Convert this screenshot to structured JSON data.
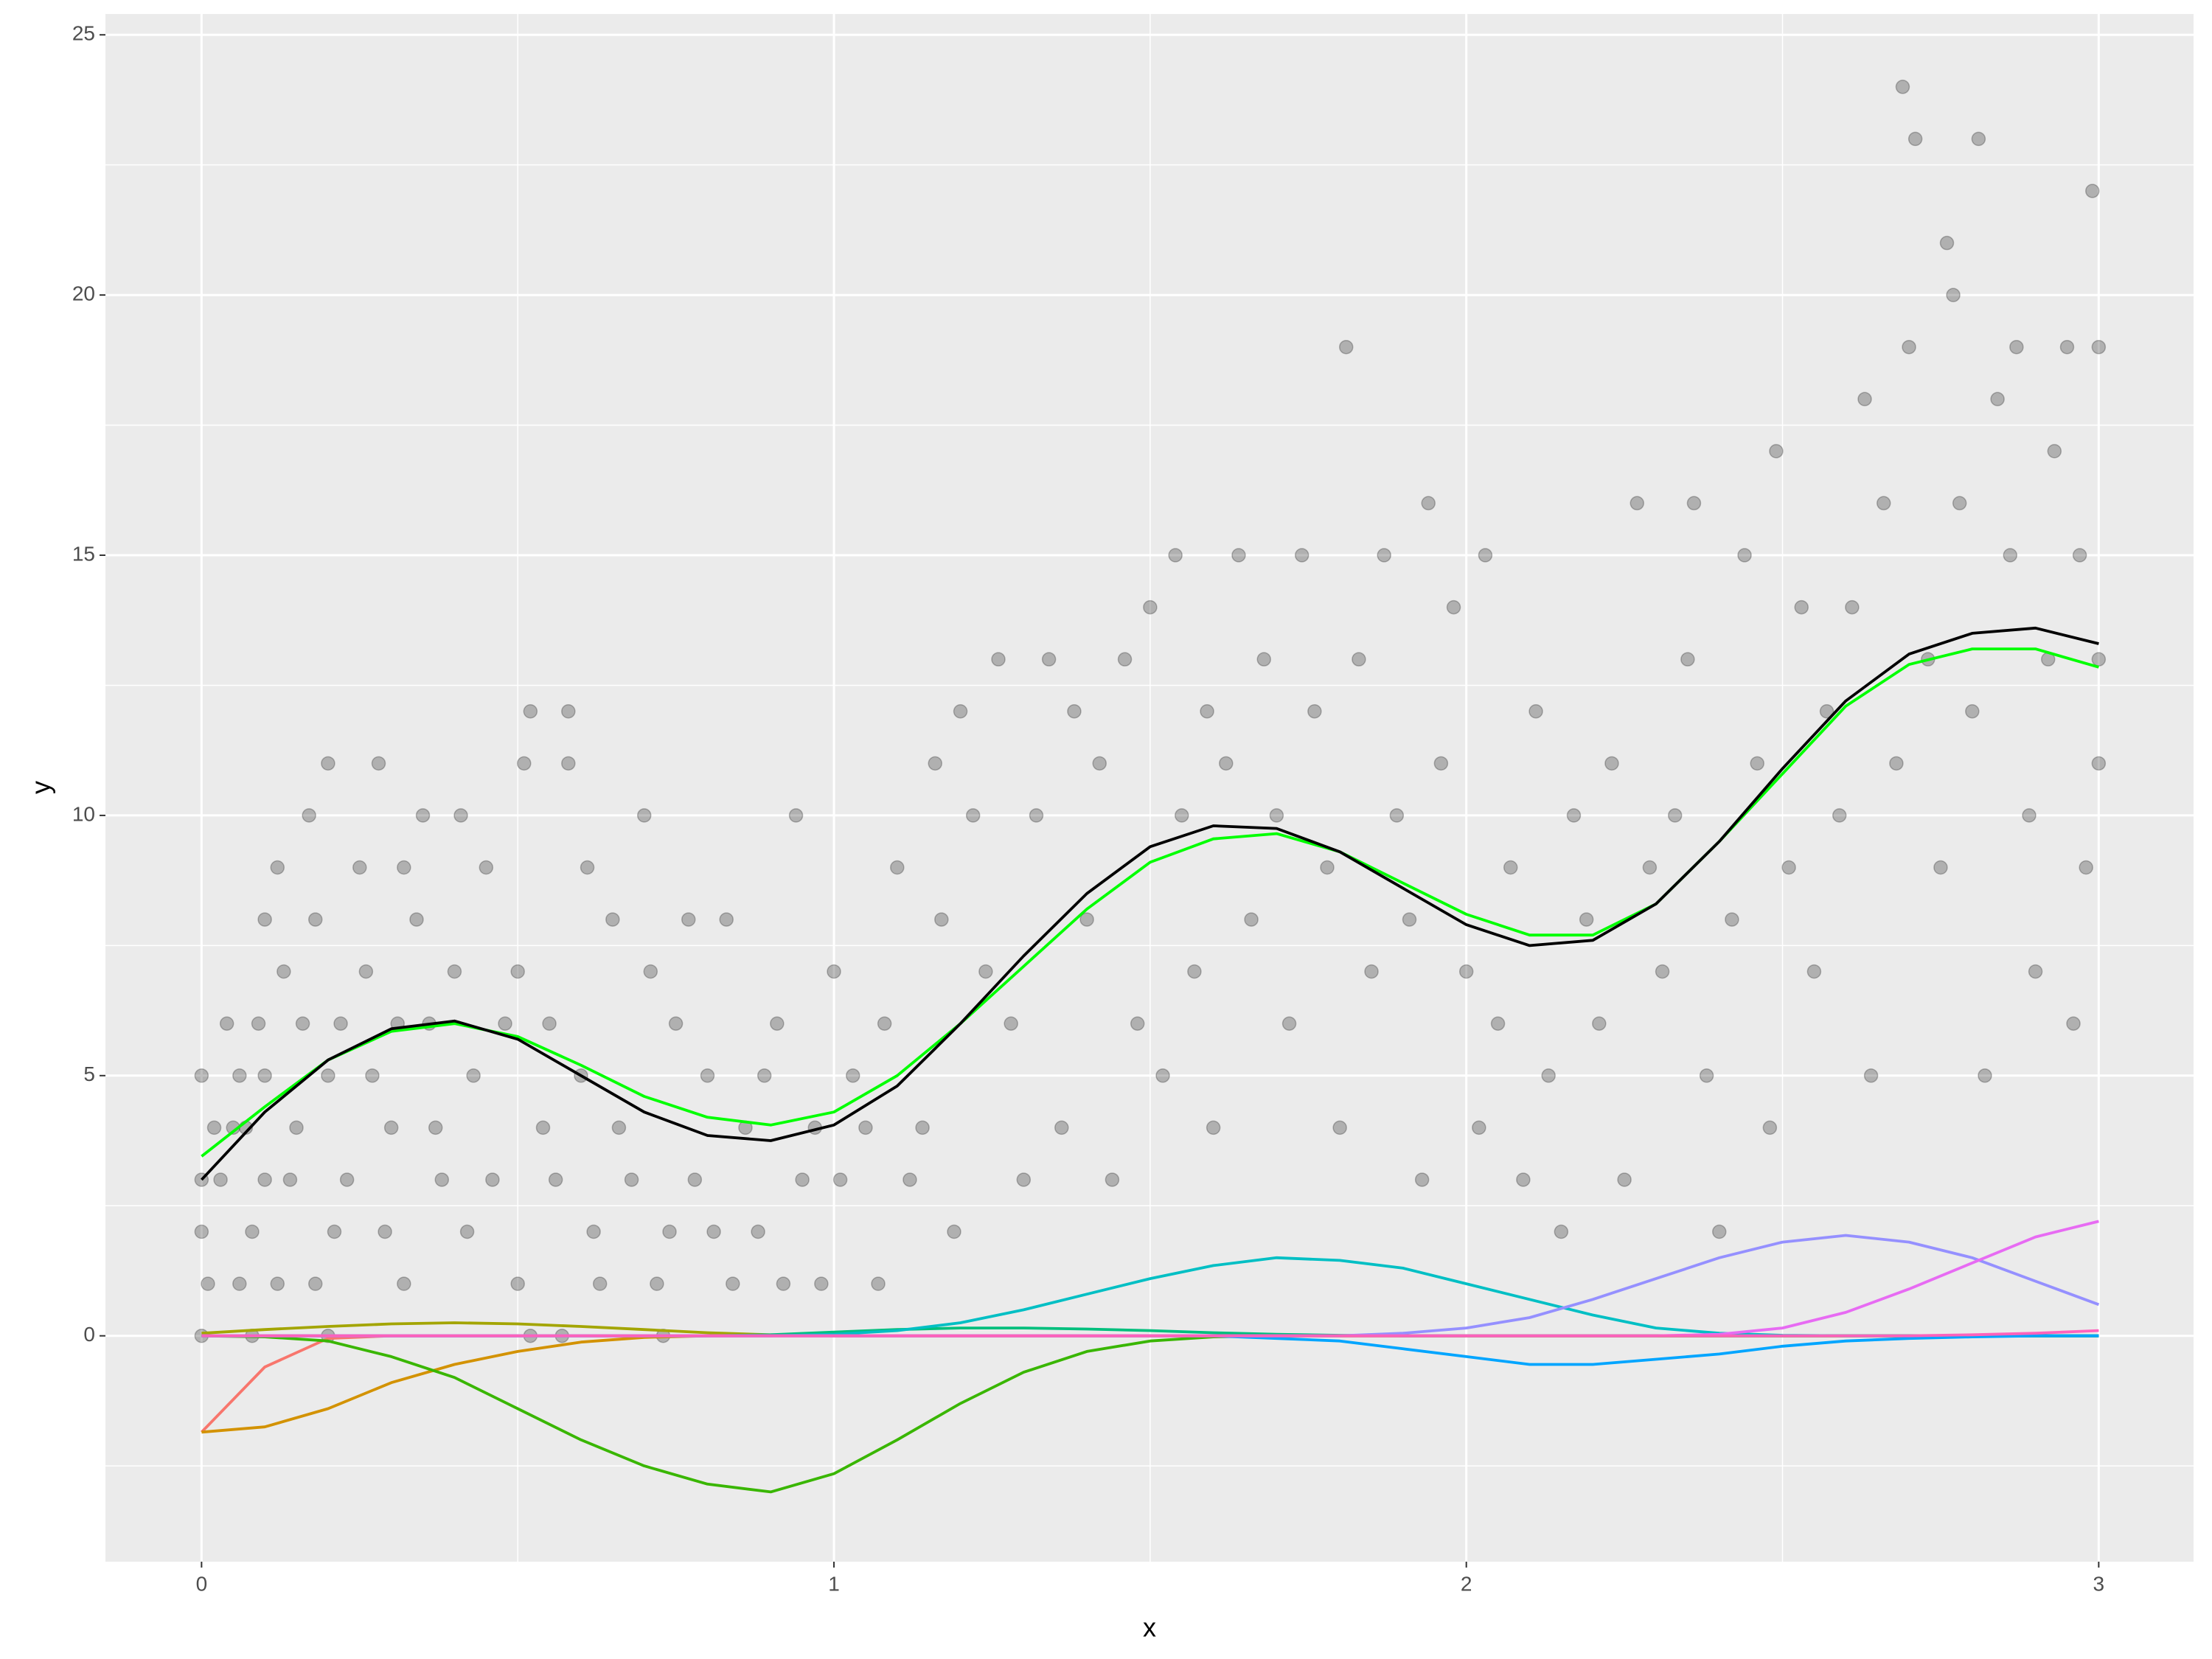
{
  "chart_data": {
    "type": "scatter",
    "x_label": "x",
    "y_label": "y",
    "xlim": [
      -0.152,
      3.15
    ],
    "ylim": [
      -4.34,
      25.4
    ],
    "xticks": [
      0,
      1,
      2,
      3
    ],
    "yticks": [
      0,
      5,
      10,
      15,
      20,
      25
    ],
    "grid": true,
    "points": {
      "color": "#000000",
      "opacity": 0.25,
      "x": [
        0,
        0,
        0,
        0.01,
        0.02,
        0.03,
        0.04,
        0.05,
        0.06,
        0.06,
        0.07,
        0.08,
        0.09,
        0.1,
        0.1,
        0.1,
        0.12,
        0.12,
        0.13,
        0.14,
        0.15,
        0.16,
        0.17,
        0.18,
        0.18,
        0.2,
        0.2,
        0.21,
        0.22,
        0.23,
        0.25,
        0.26,
        0.27,
        0.28,
        0.29,
        0.3,
        0.31,
        0.32,
        0.32,
        0.34,
        0.35,
        0.36,
        0.37,
        0.38,
        0.4,
        0.41,
        0.42,
        0.43,
        0.45,
        0.46,
        0.48,
        0.5,
        0.5,
        0.51,
        0.52,
        0.54,
        0.55,
        0.56,
        0.58,
        0.58,
        0.6,
        0.61,
        0.62,
        0.63,
        0.65,
        0.66,
        0.68,
        0.7,
        0.71,
        0.72,
        0.74,
        0.75,
        0.77,
        0.78,
        0.8,
        0.81,
        0.83,
        0.84,
        0.86,
        0.88,
        0.89,
        0.91,
        0.92,
        0.94,
        0.95,
        0.97,
        0.98,
        1.0,
        1.01,
        1.03,
        1.05,
        1.07,
        1.08,
        1.1,
        1.12,
        1.14,
        1.16,
        1.17,
        1.19,
        1.2,
        1.22,
        1.24,
        1.26,
        1.28,
        1.3,
        1.32,
        1.34,
        1.36,
        1.38,
        1.4,
        1.42,
        1.44,
        1.46,
        1.48,
        1.5,
        1.52,
        1.54,
        1.55,
        1.57,
        1.59,
        1.6,
        1.62,
        1.64,
        1.66,
        1.68,
        1.7,
        1.72,
        1.74,
        1.76,
        1.78,
        1.8,
        1.81,
        1.83,
        1.85,
        1.87,
        1.89,
        1.91,
        1.93,
        1.94,
        1.96,
        1.98,
        2.0,
        2.02,
        2.03,
        2.05,
        2.07,
        2.09,
        2.11,
        2.13,
        2.15,
        2.17,
        2.19,
        2.21,
        2.23,
        2.25,
        2.27,
        2.29,
        2.31,
        2.33,
        2.35,
        2.36,
        2.38,
        2.4,
        2.42,
        2.44,
        2.46,
        2.48,
        2.49,
        2.51,
        2.53,
        2.55,
        2.57,
        2.59,
        2.61,
        2.63,
        2.64,
        2.66,
        2.68,
        2.69,
        2.7,
        2.71,
        2.73,
        2.75,
        2.76,
        2.77,
        2.78,
        2.8,
        2.81,
        2.82,
        2.84,
        2.86,
        2.87,
        2.89,
        2.9,
        2.92,
        2.93,
        2.95,
        2.96,
        2.97,
        2.98,
        2.99,
        3.0,
        3.0,
        3.0,
        0,
        0.08,
        0.2,
        0.52,
        0.57,
        0.73
      ],
      "y": [
        5,
        2,
        3,
        1,
        4,
        3,
        6,
        4,
        1,
        5,
        4,
        2,
        6,
        5,
        3,
        8,
        9,
        1,
        7,
        3,
        4,
        6,
        10,
        8,
        1,
        11,
        5,
        2,
        6,
        3,
        9,
        7,
        5,
        11,
        2,
        4,
        6,
        1,
        9,
        8,
        10,
        6,
        4,
        3,
        7,
        10,
        2,
        5,
        9,
        3,
        6,
        1,
        7,
        11,
        12,
        4,
        6,
        3,
        11,
        12,
        5,
        9,
        2,
        1,
        8,
        4,
        3,
        10,
        7,
        1,
        2,
        6,
        8,
        3,
        5,
        2,
        8,
        1,
        4,
        2,
        5,
        6,
        1,
        10,
        3,
        4,
        1,
        7,
        3,
        5,
        4,
        1,
        6,
        9,
        3,
        4,
        11,
        8,
        2,
        12,
        10,
        7,
        13,
        6,
        3,
        10,
        13,
        4,
        12,
        8,
        11,
        3,
        13,
        6,
        14,
        5,
        15,
        10,
        7,
        12,
        4,
        11,
        15,
        8,
        13,
        10,
        6,
        15,
        12,
        9,
        4,
        19,
        13,
        7,
        15,
        10,
        8,
        3,
        16,
        11,
        14,
        7,
        4,
        15,
        6,
        9,
        3,
        12,
        5,
        2,
        10,
        8,
        6,
        11,
        3,
        16,
        9,
        7,
        10,
        13,
        16,
        5,
        2,
        8,
        15,
        11,
        4,
        17,
        9,
        14,
        7,
        12,
        10,
        14,
        18,
        5,
        16,
        11,
        24,
        19,
        23,
        13,
        9,
        21,
        20,
        16,
        12,
        23,
        5,
        18,
        15,
        19,
        10,
        7,
        13,
        17,
        19,
        6,
        15,
        9,
        22,
        19,
        11,
        13,
        0,
        0,
        0,
        0,
        0,
        0
      ]
    },
    "x": [
      0,
      0.1,
      0.2,
      0.3,
      0.4,
      0.5,
      0.6,
      0.7,
      0.8,
      0.9,
      1.0,
      1.1,
      1.2,
      1.3,
      1.4,
      1.5,
      1.6,
      1.7,
      1.8,
      1.9,
      2.0,
      2.1,
      2.2,
      2.3,
      2.4,
      2.5,
      2.6,
      2.7,
      2.8,
      2.9,
      3.0
    ],
    "series": [
      {
        "color": "#F8766D",
        "values": [
          -1.85,
          -0.6,
          -0.05,
          0,
          0,
          0,
          0,
          0,
          0,
          0,
          0,
          0,
          0,
          0,
          0,
          0,
          0,
          0,
          0,
          0,
          0,
          0,
          0,
          0,
          0,
          0,
          0,
          0,
          0,
          0,
          0
        ]
      },
      {
        "color": "#D39200",
        "values": [
          -1.85,
          -1.75,
          -1.4,
          -0.9,
          -0.55,
          -0.3,
          -0.12,
          -0.03,
          0,
          0,
          0,
          0,
          0,
          0,
          0,
          0,
          0,
          0,
          0,
          0,
          0,
          0,
          0,
          0,
          0,
          0,
          0,
          0,
          0,
          0,
          0
        ]
      },
      {
        "color": "#A3A500",
        "values": [
          0.05,
          0.12,
          0.18,
          0.23,
          0.25,
          0.23,
          0.18,
          0.12,
          0.06,
          0.02,
          0,
          0,
          0,
          0,
          0,
          0,
          0,
          0,
          0,
          0,
          0,
          0,
          0,
          0,
          0,
          0,
          0,
          0,
          0,
          0,
          0
        ]
      },
      {
        "color": "#39B600",
        "values": [
          0,
          -0.02,
          -0.1,
          -0.4,
          -0.8,
          -1.4,
          -2.0,
          -2.5,
          -2.85,
          -3.0,
          -2.65,
          -2.0,
          -1.3,
          -0.7,
          -0.3,
          -0.1,
          -0.02,
          0,
          0,
          0,
          0,
          0,
          0,
          0,
          0,
          0,
          0,
          0,
          0,
          0,
          0
        ]
      },
      {
        "color": "#00BF7D",
        "values": [
          0,
          0,
          0,
          0,
          0,
          0,
          0,
          0,
          0,
          0.02,
          0.07,
          0.12,
          0.15,
          0.15,
          0.13,
          0.1,
          0.06,
          0.03,
          0.01,
          0,
          0,
          0,
          0,
          0,
          0,
          0,
          0,
          0,
          0,
          0,
          0
        ]
      },
      {
        "color": "#00BFC4",
        "values": [
          0,
          0,
          0,
          0,
          0,
          0,
          0,
          0,
          0,
          0,
          0.03,
          0.1,
          0.25,
          0.5,
          0.8,
          1.1,
          1.35,
          1.5,
          1.45,
          1.3,
          1.0,
          0.7,
          0.4,
          0.15,
          0.05,
          0.01,
          0,
          0,
          0,
          0,
          0
        ]
      },
      {
        "color": "#00A5FF",
        "values": [
          0,
          0,
          0,
          0,
          0,
          0,
          0,
          0,
          0,
          0,
          0,
          0,
          0,
          0,
          0,
          0,
          0,
          -0.05,
          -0.1,
          -0.25,
          -0.4,
          -0.55,
          -0.55,
          -0.45,
          -0.35,
          -0.2,
          -0.1,
          -0.05,
          -0.02,
          0,
          0
        ]
      },
      {
        "color": "#9590FF",
        "values": [
          0,
          0,
          0,
          0,
          0,
          0,
          0,
          0,
          0,
          0,
          0,
          0,
          0,
          0,
          0,
          0,
          0,
          0,
          0,
          0.05,
          0.15,
          0.35,
          0.7,
          1.1,
          1.5,
          1.8,
          1.93,
          1.8,
          1.5,
          1.05,
          0.6
        ]
      },
      {
        "color": "#E76BF3",
        "values": [
          0,
          0,
          0,
          0,
          0,
          0,
          0,
          0,
          0,
          0,
          0,
          0,
          0,
          0,
          0,
          0,
          0,
          0,
          0,
          0,
          0,
          0,
          0,
          0,
          0.03,
          0.15,
          0.45,
          0.9,
          1.4,
          1.9,
          2.2
        ]
      },
      {
        "color": "#FF62BC",
        "values": [
          0,
          0,
          0,
          0,
          0,
          0,
          0,
          0,
          0,
          0,
          0,
          0,
          0,
          0,
          0,
          0,
          0,
          0,
          0,
          0,
          0,
          0,
          0,
          0,
          0,
          0,
          0,
          0,
          0.02,
          0.05,
          0.1
        ]
      },
      {
        "color": "#00FF00",
        "values": [
          3.45,
          4.4,
          5.3,
          5.85,
          6.0,
          5.75,
          5.2,
          4.6,
          4.2,
          4.05,
          4.3,
          5.0,
          6.0,
          7.1,
          8.2,
          9.1,
          9.55,
          9.65,
          9.3,
          8.7,
          8.1,
          7.7,
          7.7,
          8.3,
          9.5,
          10.8,
          12.1,
          12.9,
          13.2,
          13.2,
          12.85
        ]
      },
      {
        "color": "#000000",
        "values": [
          3.0,
          4.3,
          5.3,
          5.9,
          6.05,
          5.7,
          5.0,
          4.3,
          3.85,
          3.75,
          4.05,
          4.8,
          6.0,
          7.3,
          8.5,
          9.4,
          9.8,
          9.75,
          9.3,
          8.6,
          7.9,
          7.5,
          7.6,
          8.3,
          9.5,
          10.9,
          12.2,
          13.1,
          13.5,
          13.6,
          13.3
        ]
      }
    ]
  }
}
